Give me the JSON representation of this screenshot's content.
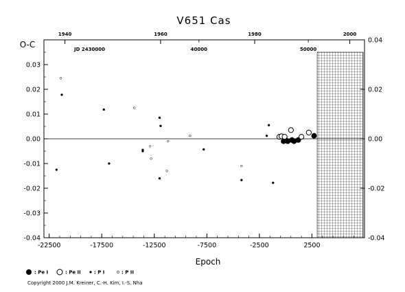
{
  "chart_data": {
    "type": "scatter",
    "title": "V651  Cas",
    "xlabel": "Epoch",
    "ylabel": "O-C",
    "xlim": [
      -23000,
      7500
    ],
    "ylim": [
      -0.04,
      0.04
    ],
    "grid": false,
    "x_ticks": [
      "-22500",
      "-17500",
      "-12500",
      "-7500",
      "-2500",
      "2500"
    ],
    "y_ticks_left": [
      "0.03",
      "0.02",
      "0.01",
      "0.00",
      "-0.01",
      "-0.02",
      "-0.03",
      "-0.04"
    ],
    "y_ticks_right": [
      "0.04",
      "0.02",
      "0.00",
      "-0.02",
      "-0.04"
    ],
    "top_year_ticks": [
      "1940",
      "1960",
      "1980",
      "2000"
    ],
    "top_jd_ticks": [
      "40000",
      "50000"
    ],
    "jd_label": "JD 2430000",
    "hatched_region_x": [
      3000,
      7500
    ],
    "legend": [
      {
        "name": ": Pe I",
        "marker": "filled-large"
      },
      {
        "name": ": Pe II",
        "marker": "open-large"
      },
      {
        "name": ": P I",
        "marker": "filled-small"
      },
      {
        "name": ": P II",
        "marker": "open-small"
      }
    ],
    "series": [
      {
        "name": "Pe I",
        "points": [
          {
            "x": -200,
            "y": -0.001
          },
          {
            "x": -100,
            "y": 0.0005
          },
          {
            "x": 0,
            "y": -0.0005
          },
          {
            "x": 200,
            "y": -0.001
          },
          {
            "x": 600,
            "y": -0.0005
          },
          {
            "x": 800,
            "y": -0.001
          },
          {
            "x": 1200,
            "y": -0.0005
          },
          {
            "x": 2700,
            "y": 0.0012
          }
        ]
      },
      {
        "name": "Pe II",
        "points": [
          {
            "x": -600,
            "y": 0.0008
          },
          {
            "x": -400,
            "y": 0.001
          },
          {
            "x": -100,
            "y": 0.0008
          },
          {
            "x": 500,
            "y": 0.0035
          },
          {
            "x": 1500,
            "y": 0.0008
          },
          {
            "x": 2200,
            "y": 0.0025
          }
        ]
      },
      {
        "name": "P I",
        "points": [
          {
            "x": -21800,
            "y": -0.0125
          },
          {
            "x": -21300,
            "y": 0.0178
          },
          {
            "x": -17300,
            "y": 0.0118
          },
          {
            "x": -16800,
            "y": -0.01
          },
          {
            "x": -13600,
            "y": -0.0045
          },
          {
            "x": -13600,
            "y": -0.005
          },
          {
            "x": -12000,
            "y": 0.0085
          },
          {
            "x": -11900,
            "y": 0.0052
          },
          {
            "x": -12000,
            "y": -0.016
          },
          {
            "x": -7800,
            "y": -0.0043
          },
          {
            "x": -4200,
            "y": -0.0167
          },
          {
            "x": -1800,
            "y": 0.0012
          },
          {
            "x": -1600,
            "y": 0.0055
          },
          {
            "x": -1200,
            "y": -0.0178
          }
        ]
      },
      {
        "name": "P II",
        "points": [
          {
            "x": -21400,
            "y": 0.0245
          },
          {
            "x": -14400,
            "y": 0.0125
          },
          {
            "x": -12900,
            "y": -0.003
          },
          {
            "x": -12800,
            "y": -0.008
          },
          {
            "x": -11200,
            "y": -0.001
          },
          {
            "x": -11300,
            "y": -0.013
          },
          {
            "x": -9100,
            "y": 0.0012
          },
          {
            "x": -4200,
            "y": -0.011
          }
        ]
      }
    ]
  },
  "copyright": "Copyright 2000 J.M. Kreiner, C.-H. Kim, I.-S. Nha"
}
